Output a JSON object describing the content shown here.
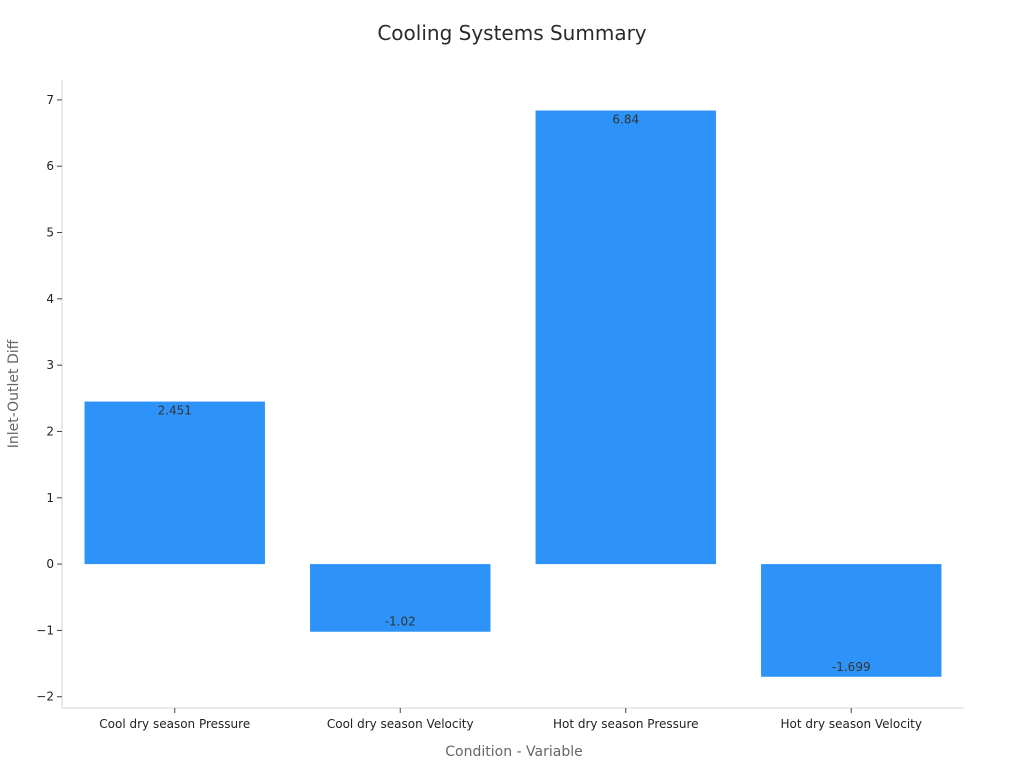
{
  "chart_data": {
    "type": "bar",
    "title": "Cooling Systems Summary",
    "xlabel": "Condition - Variable",
    "ylabel": "Inlet-Outlet Diff",
    "categories": [
      "Cool dry season Pressure",
      "Cool dry season Velocity",
      "Hot dry season Pressure",
      "Hot dry season Velocity"
    ],
    "values": [
      2.451,
      -1.02,
      6.84,
      -1.699
    ],
    "data_labels": [
      "2.451",
      "-1.02",
      "6.84",
      "-1.699"
    ],
    "yticks": [
      -2,
      -1,
      0,
      1,
      2,
      3,
      4,
      5,
      6,
      7
    ],
    "ytick_labels": [
      "−2",
      "−1",
      "0",
      "1",
      "2",
      "3",
      "4",
      "5",
      "6",
      "7"
    ],
    "ylim": [
      -2.17,
      7.3
    ],
    "grid": false,
    "bar_color": "#2e93f8"
  }
}
